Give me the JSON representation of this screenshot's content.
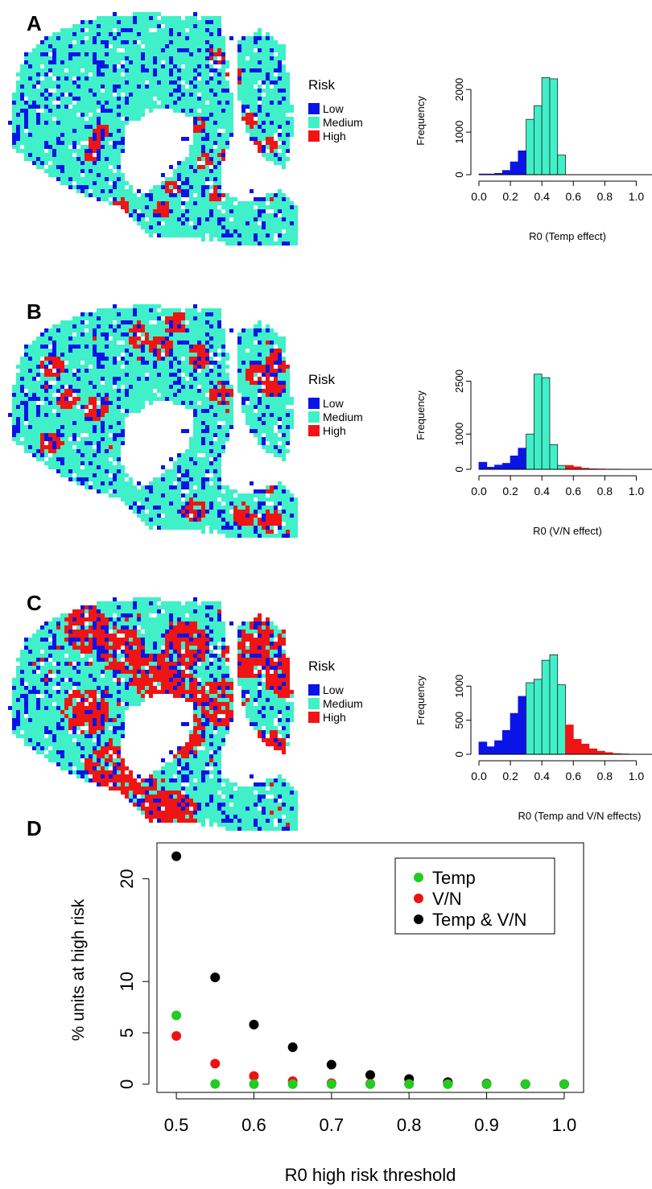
{
  "panels": [
    {
      "letter": "A",
      "legend": {
        "title": "Risk",
        "items": [
          {
            "label": "Low",
            "color": "#0a14e6"
          },
          {
            "label": "Medium",
            "color": "#3ff0c8"
          },
          {
            "label": "High",
            "color": "#f01414"
          }
        ]
      },
      "map": {
        "high_share": 0.003
      }
    },
    {
      "letter": "B",
      "legend": {
        "title": "Risk",
        "items": [
          {
            "label": "Low",
            "color": "#0a14e6"
          },
          {
            "label": "Medium",
            "color": "#3ff0c8"
          },
          {
            "label": "High",
            "color": "#f01414"
          }
        ]
      },
      "map": {
        "high_share": 0.03
      }
    },
    {
      "letter": "C",
      "legend": {
        "title": "Risk",
        "items": [
          {
            "label": "Low",
            "color": "#0a14e6"
          },
          {
            "label": "Medium",
            "color": "#3ff0c8"
          },
          {
            "label": "High",
            "color": "#f01414"
          }
        ]
      },
      "map": {
        "high_share": 0.12
      }
    },
    {
      "letter": "D"
    }
  ],
  "colors": {
    "low": "#0a14e6",
    "medium": "#3ff0c8",
    "high": "#f01414"
  },
  "chart_data": [
    {
      "type": "bar",
      "panel": "A",
      "xlabel": "R0 (Temp effect)",
      "ylabel": "Frequency",
      "xlim": [
        0,
        1.1
      ],
      "ylim": [
        0,
        2400
      ],
      "xticks": [
        "0.0",
        "0.2",
        "0.4",
        "0.6",
        "0.8",
        "1.0"
      ],
      "yticks": [
        "0",
        "1000",
        "2000"
      ],
      "bin_width": 0.05,
      "bin_starts": [
        0.0,
        0.05,
        0.1,
        0.15,
        0.2,
        0.25,
        0.3,
        0.35,
        0.4,
        0.45,
        0.5,
        0.55,
        0.6,
        0.65,
        0.7,
        0.75,
        0.8,
        0.85,
        0.9,
        0.95,
        1.0,
        1.05
      ],
      "values": [
        15,
        15,
        30,
        100,
        300,
        560,
        1300,
        1620,
        2280,
        2250,
        460,
        0,
        0,
        0,
        0,
        0,
        0,
        0,
        0,
        0,
        0,
        0
      ],
      "low_threshold": 0.3,
      "high_threshold": 0.55
    },
    {
      "type": "bar",
      "panel": "B",
      "xlabel": "R0 (V/N effect)",
      "ylabel": "Frequency",
      "xlim": [
        0,
        1.1
      ],
      "ylim": [
        0,
        2900
      ],
      "xticks": [
        "0.0",
        "0.2",
        "0.4",
        "0.6",
        "0.8",
        "1.0"
      ],
      "yticks": [
        "0",
        "1000",
        "2500"
      ],
      "bin_width": 0.05,
      "bin_starts": [
        0.0,
        0.05,
        0.1,
        0.15,
        0.2,
        0.25,
        0.3,
        0.35,
        0.4,
        0.45,
        0.5,
        0.55,
        0.6,
        0.65,
        0.7,
        0.75,
        0.8,
        0.85,
        0.9,
        0.95,
        1.0,
        1.05
      ],
      "values": [
        200,
        60,
        120,
        170,
        380,
        600,
        1000,
        2700,
        2600,
        700,
        110,
        110,
        70,
        30,
        15,
        10,
        5,
        5,
        0,
        0,
        0,
        0
      ],
      "low_threshold": 0.3,
      "high_threshold": 0.55
    },
    {
      "type": "bar",
      "panel": "C",
      "xlabel": "R0 (Temp and V/N effects)",
      "ylabel": "Frequency",
      "xlim": [
        0,
        1.1
      ],
      "ylim": [
        0,
        1500
      ],
      "xticks": [
        "0.0",
        "0.2",
        "0.4",
        "0.6",
        "0.8",
        "1.0"
      ],
      "yticks": [
        "0",
        "500",
        "1000"
      ],
      "bin_width": 0.05,
      "bin_starts": [
        0.0,
        0.05,
        0.1,
        0.15,
        0.2,
        0.25,
        0.3,
        0.35,
        0.4,
        0.45,
        0.5,
        0.55,
        0.6,
        0.65,
        0.7,
        0.75,
        0.8,
        0.85,
        0.9,
        0.95,
        1.0,
        1.05
      ],
      "values": [
        180,
        110,
        200,
        350,
        600,
        850,
        1050,
        1100,
        1380,
        1460,
        1020,
        430,
        220,
        150,
        80,
        45,
        25,
        10,
        5,
        0,
        0,
        0
      ],
      "low_threshold": 0.3,
      "high_threshold": 0.55
    },
    {
      "type": "scatter",
      "panel": "D",
      "xlabel": "R0 high risk threshold",
      "ylabel": "% units at high risk",
      "xlim": [
        0.475,
        1.025
      ],
      "ylim": [
        -0.8,
        23.5
      ],
      "xticks": [
        "0.5",
        "0.6",
        "0.7",
        "0.8",
        "0.9",
        "1.0"
      ],
      "yticks": [
        "0",
        "5",
        "10",
        "20"
      ],
      "legend_position": "top-right",
      "x": [
        0.5,
        0.55,
        0.6,
        0.65,
        0.7,
        0.75,
        0.8,
        0.85,
        0.9,
        0.95,
        1.0
      ],
      "series": [
        {
          "name": "Temp",
          "color": "#22cc22",
          "values": [
            6.7,
            0.02,
            0,
            0,
            0,
            0,
            0,
            0,
            0,
            0,
            0
          ]
        },
        {
          "name": "V/N",
          "color": "#ee1111",
          "values": [
            4.7,
            2.0,
            0.8,
            0.3,
            0.1,
            0.05,
            0.02,
            0.01,
            0,
            0,
            0
          ]
        },
        {
          "name": "Temp & V/N",
          "color": "#000000",
          "values": [
            22.2,
            10.4,
            5.8,
            3.6,
            1.9,
            0.9,
            0.5,
            0.2,
            0.05,
            0,
            0
          ]
        }
      ]
    }
  ]
}
